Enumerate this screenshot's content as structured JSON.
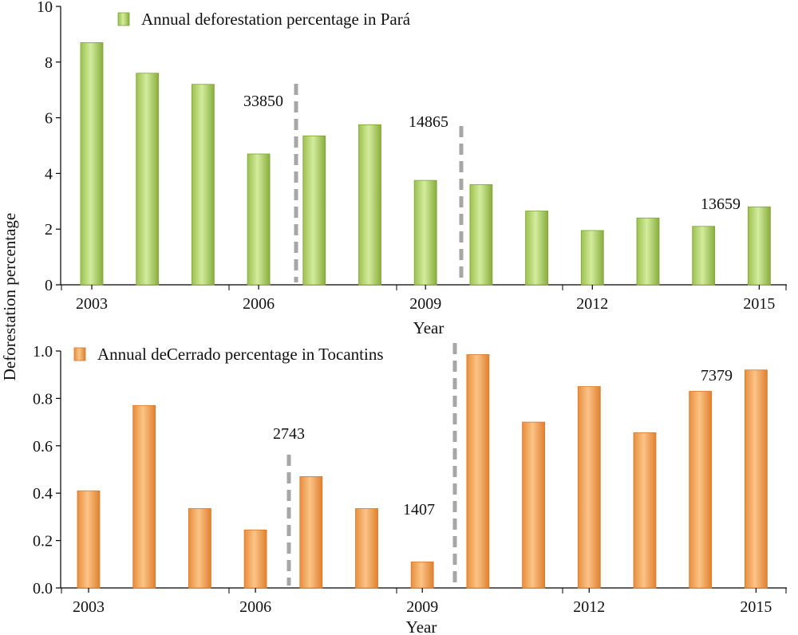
{
  "shared_ylabel": "Deforestation percentage",
  "colors": {
    "green_light": "#c9e58f",
    "green_dark": "#7fa536",
    "orange_light": "#f8b978",
    "orange_dark": "#d9782a",
    "dash": "#a6a6a6"
  },
  "chart_data": [
    {
      "type": "bar",
      "legend": "Annual deforestation percentage in Pará",
      "legend_position": "top-left",
      "xlabel": "Year",
      "x_tick_labels": [
        "2003",
        "2006",
        "2009",
        "2012",
        "2015"
      ],
      "y_tick_labels": [
        "0",
        "2",
        "4",
        "6",
        "8",
        "10"
      ],
      "ylim": [
        0,
        10
      ],
      "grid": false,
      "categories": [
        "2003",
        "2004",
        "2005",
        "2006",
        "2007",
        "2008",
        "2009",
        "2010",
        "2011",
        "2012",
        "2013",
        "2014",
        "2015"
      ],
      "values": [
        8.7,
        7.6,
        7.2,
        4.7,
        5.35,
        5.75,
        3.75,
        3.6,
        2.65,
        1.95,
        2.4,
        2.1,
        2.8
      ],
      "annotations": [
        {
          "text": "33850",
          "between": [
            "2006",
            "2007"
          ]
        },
        {
          "text": "14865",
          "between": [
            "2009",
            "2010"
          ]
        },
        {
          "text": "13659",
          "above": "2014"
        }
      ]
    },
    {
      "type": "bar",
      "legend": "Annual deCerrado percentage in Tocantins",
      "legend_position": "top-left",
      "xlabel": "Year",
      "x_tick_labels": [
        "2003",
        "2006",
        "2009",
        "2012",
        "2015"
      ],
      "y_tick_labels": [
        "0.0",
        "0.2",
        "0.4",
        "0.6",
        "0.8",
        "1.0"
      ],
      "ylim": [
        0,
        1
      ],
      "grid": false,
      "categories": [
        "2003",
        "2004",
        "2005",
        "2006",
        "2007",
        "2008",
        "2009",
        "2010",
        "2011",
        "2012",
        "2013",
        "2014",
        "2015"
      ],
      "values": [
        0.41,
        0.77,
        0.335,
        0.245,
        0.47,
        0.335,
        0.11,
        0.985,
        0.7,
        0.85,
        0.655,
        0.83,
        0.92
      ],
      "annotations": [
        {
          "text": "2743",
          "between": [
            "2006",
            "2007"
          ]
        },
        {
          "text": "1407",
          "between": [
            "2009",
            "2010"
          ]
        },
        {
          "text": "7379",
          "above": "2014"
        }
      ]
    }
  ]
}
